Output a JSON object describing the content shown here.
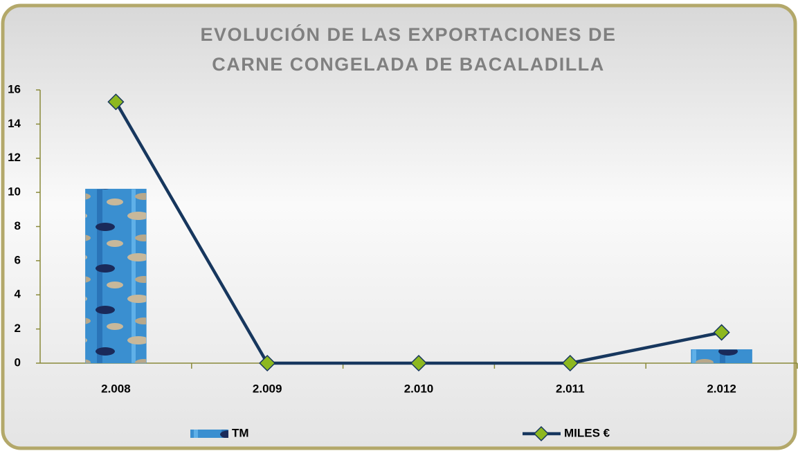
{
  "chart_data": {
    "type": "combo",
    "title": [
      "EVOLUCIÓN DE LAS EXPORTACIONES DE",
      "CARNE CONGELADA DE BACALADILLA"
    ],
    "categories": [
      "2.008",
      "2.009",
      "2.010",
      "2.011",
      "2.012"
    ],
    "series": [
      {
        "name": "TM",
        "type": "bar",
        "color": "#3a8fd0",
        "values": [
          10.2,
          0,
          0,
          0,
          0.8
        ]
      },
      {
        "name": "MILES €",
        "type": "line",
        "color": "#17375e",
        "marker_color": "#8db820",
        "values": [
          15.3,
          0,
          0,
          0,
          1.8
        ]
      }
    ],
    "ylim": [
      0,
      16
    ],
    "yticks": [
      0,
      2,
      4,
      6,
      8,
      10,
      12,
      14,
      16
    ],
    "grid": false,
    "legend": "bottom"
  }
}
